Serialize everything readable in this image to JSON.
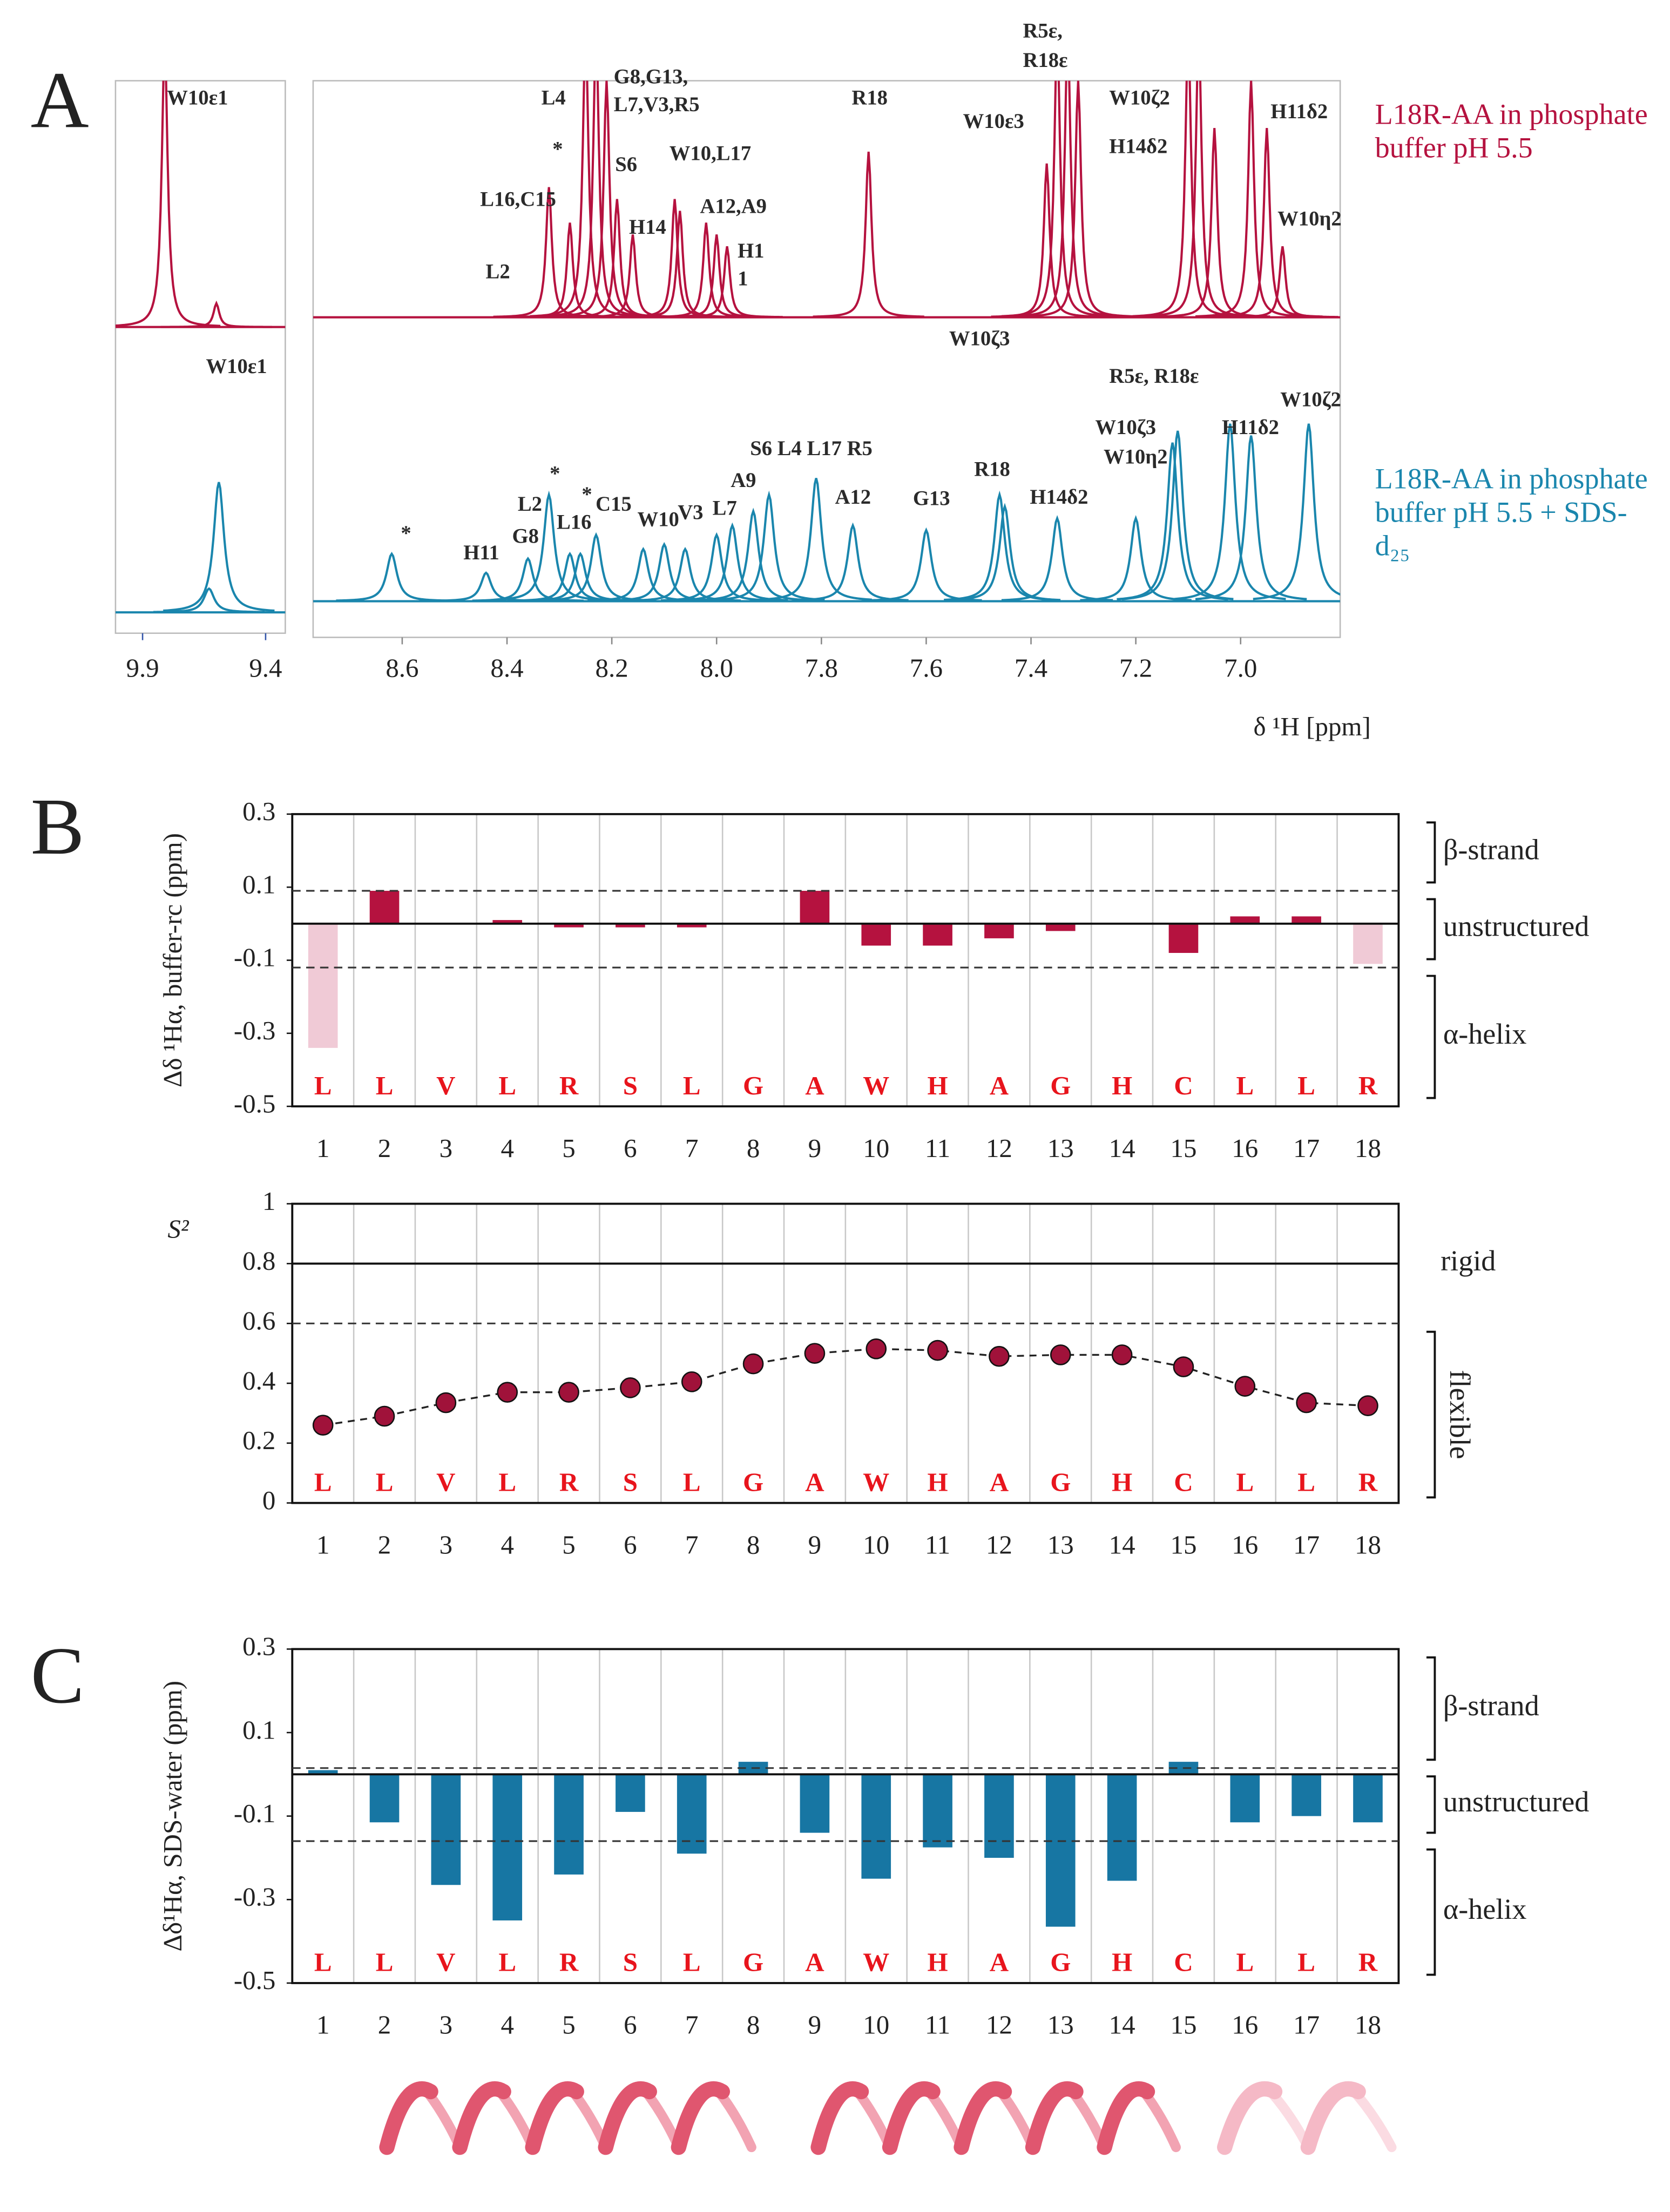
{
  "panel_labels": [
    "A",
    "B",
    "C"
  ],
  "chart_data": [
    {
      "type": "spectrum",
      "xlabel": "δ ¹H [ppm]",
      "xlim": [
        8.77,
        6.81
      ],
      "xticks": [
        8.6,
        8.4,
        8.2,
        {
          "value": 8,
          "label": "8.0"
        },
        7.8,
        7.6,
        7.4,
        7.2,
        {
          "value": 7,
          "label": "7.0"
        }
      ],
      "inset_xlim": [
        10.01,
        9.32
      ],
      "inset_xticks": [
        9.9,
        9.4
      ],
      "series": [
        {
          "name": "L18R-AA in phosphate buffer pH 5.5",
          "color": "#b5123f",
          "x": [
            8.32,
            8.28,
            8.25,
            8.23,
            8.21,
            8.19,
            8.16,
            8.08,
            8.07,
            8.02,
            8.0,
            7.98,
            7.71,
            7.37,
            7.35,
            7.33,
            7.31,
            7.1,
            7.08,
            7.05,
            6.98,
            6.95,
            6.92
          ],
          "values": [
            0.55,
            0.4,
            1.2,
            1.2,
            1.0,
            0.5,
            0.35,
            0.5,
            0.45,
            0.4,
            0.35,
            0.3,
            0.7,
            0.65,
            1.2,
            1.2,
            1.0,
            1.2,
            1.2,
            0.8,
            1.0,
            0.8,
            0.3
          ],
          "inset_x": [
            9.81,
            9.6
          ],
          "inset_values": [
            1.2,
            0.1
          ]
        },
        {
          "name": "L18R-AA in phosphate buffer pH 5.5 + SDS-d₂₅",
          "color": "#1a86ad",
          "x": [
            8.62,
            8.44,
            8.36,
            8.32,
            8.28,
            8.26,
            8.23,
            8.14,
            8.1,
            8.06,
            8.0,
            7.97,
            7.93,
            7.9,
            7.81,
            7.74,
            7.6,
            7.46,
            7.45,
            7.35,
            7.2,
            7.13,
            7.12,
            7.02,
            6.98,
            6.87
          ],
          "values": [
            0.2,
            0.12,
            0.18,
            0.45,
            0.2,
            0.2,
            0.28,
            0.22,
            0.24,
            0.22,
            0.28,
            0.32,
            0.38,
            0.45,
            0.52,
            0.32,
            0.3,
            0.45,
            0.4,
            0.35,
            0.35,
            0.67,
            0.72,
            0.75,
            0.7,
            0.75
          ],
          "inset_x": [
            9.59,
            9.63
          ],
          "inset_values": [
            0.55,
            0.1
          ]
        }
      ],
      "annotations": [
        "W10ε1",
        "L4",
        "G8,G13,",
        "L7,V3,R5",
        "*",
        "S6",
        "W10,L17",
        "L16,C15",
        "A12,A9",
        "H14",
        "H1",
        "1",
        "L2",
        "R18",
        "R5ε,",
        "R18ε",
        "W10ε3",
        "W10ζ2",
        "H14δ2",
        "H11δ2",
        "W10η2",
        "W10ζ3",
        "W10ε1",
        "R5ε, R18ε",
        "W10ζ2",
        "W10ζ3",
        "W10η2",
        "H11δ2",
        "S6 L4 L17 R5",
        "R18",
        "A9",
        "*",
        "L2",
        "*",
        "C15",
        "W10",
        "V3",
        "L7",
        "A12",
        "G13",
        "H14δ2",
        "L16",
        "G8",
        "H11",
        "*"
      ]
    },
    {
      "type": "bar",
      "ylabel": "Δδ ¹Hα, buffer-rc (ppm)",
      "categories": [
        "1",
        "2",
        "3",
        "4",
        "5",
        "6",
        "7",
        "8",
        "9",
        "10",
        "11",
        "12",
        "13",
        "14",
        "15",
        "16",
        "17",
        "18"
      ],
      "residues": [
        "L",
        "L",
        "V",
        "L",
        "R",
        "S",
        "L",
        "G",
        "A",
        "W",
        "H",
        "A",
        "G",
        "H",
        "C",
        "L",
        "L",
        "R"
      ],
      "values": [
        -0.34,
        0.09,
        0,
        0.01,
        -0.01,
        -0.01,
        -0.01,
        0,
        0.09,
        -0.06,
        -0.06,
        -0.04,
        -0.02,
        0,
        -0.08,
        0.02,
        0.02,
        -0.11
      ],
      "colors": [
        "#f0cad6",
        "#b5123f",
        "#b5123f",
        "#b5123f",
        "#b5123f",
        "#b5123f",
        "#b5123f",
        "#b5123f",
        "#b5123f",
        "#b5123f",
        "#b5123f",
        "#b5123f",
        "#b5123f",
        "#b5123f",
        "#b5123f",
        "#b5123f",
        "#b5123f",
        "#f0cad6"
      ],
      "ylim": [
        -0.5,
        0.3
      ],
      "yticks": [
        0.3,
        0.1,
        -0.1,
        -0.3,
        -0.5
      ],
      "dashed_lines": [
        0.09,
        -0.12
      ],
      "regions": [
        "β-strand",
        "unstructured",
        "α-helix"
      ]
    },
    {
      "type": "line",
      "ylabel": "S²",
      "categories": [
        "1",
        "2",
        "3",
        "4",
        "5",
        "6",
        "7",
        "8",
        "9",
        "10",
        "11",
        "12",
        "13",
        "14",
        "15",
        "16",
        "17",
        "18"
      ],
      "residues": [
        "L",
        "L",
        "V",
        "L",
        "R",
        "S",
        "L",
        "G",
        "A",
        "W",
        "H",
        "A",
        "G",
        "H",
        "C",
        "L",
        "L",
        "R"
      ],
      "values": [
        0.26,
        0.29,
        0.335,
        0.37,
        0.37,
        0.385,
        0.405,
        0.465,
        0.5,
        0.515,
        0.51,
        0.49,
        0.495,
        0.495,
        0.455,
        0.39,
        0.335,
        0.325
      ],
      "color": "#a0123a",
      "ylim": [
        0,
        1
      ],
      "yticks": [
        1,
        0.8,
        0.6,
        0.4,
        0.2,
        0
      ],
      "solid_line": 0.8,
      "solid_label": "rigid",
      "dashed_line": 0.6,
      "region": "flexible"
    },
    {
      "type": "bar",
      "ylabel": "Δδ¹Hα, SDS-water (ppm)",
      "categories": [
        "1",
        "2",
        "3",
        "4",
        "5",
        "6",
        "7",
        "8",
        "9",
        "10",
        "11",
        "12",
        "13",
        "14",
        "15",
        "16",
        "17",
        "18"
      ],
      "residues": [
        "L",
        "L",
        "V",
        "L",
        "R",
        "S",
        "L",
        "G",
        "A",
        "W",
        "H",
        "A",
        "G",
        "H",
        "C",
        "L",
        "L",
        "R"
      ],
      "values": [
        0.01,
        -0.115,
        -0.265,
        -0.35,
        -0.24,
        -0.09,
        -0.19,
        0.03,
        -0.14,
        -0.25,
        -0.175,
        -0.2,
        -0.365,
        -0.255,
        0.03,
        -0.115,
        -0.1,
        -0.115
      ],
      "colors": [
        "#1776a3",
        "#1776a3",
        "#1776a3",
        "#1776a3",
        "#1776a3",
        "#1776a3",
        "#1776a3",
        "#1776a3",
        "#1776a3",
        "#1776a3",
        "#1776a3",
        "#1776a3",
        "#1776a3",
        "#1776a3",
        "#1776a3",
        "#1776a3",
        "#1776a3",
        "#1776a3"
      ],
      "ylim": [
        -0.5,
        0.3
      ],
      "yticks": [
        0.3,
        0.1,
        -0.1,
        -0.3,
        -0.5
      ],
      "dashed_lines": [
        0.015,
        -0.16
      ],
      "regions": [
        "β-strand",
        "unstructured",
        "α-helix"
      ]
    }
  ]
}
